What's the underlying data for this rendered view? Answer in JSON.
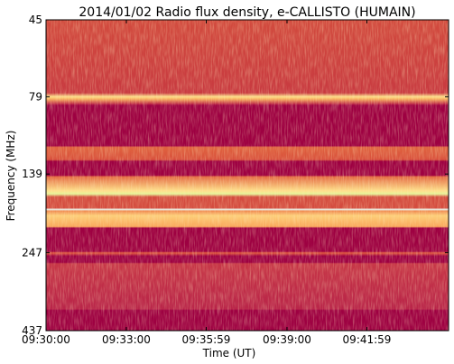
{
  "chart_data": {
    "type": "spectrogram",
    "title": "2014/01/02  Radio flux density, e-CALLISTO (HUMAIN)",
    "x_label": "Time (UT)",
    "y_label": "Frequency (MHz)",
    "xlim": [
      0,
      902
    ],
    "xticks": [
      {
        "value": 0,
        "label": "09:30:00"
      },
      {
        "value": 180,
        "label": "09:33:00"
      },
      {
        "value": 359,
        "label": "09:35:59"
      },
      {
        "value": 540,
        "label": "09:39:00"
      },
      {
        "value": 719,
        "label": "09:41:59"
      }
    ],
    "ylim": [
      437,
      45
    ],
    "yticks": [
      45,
      79,
      139,
      247,
      437
    ],
    "y_log": true
  }
}
